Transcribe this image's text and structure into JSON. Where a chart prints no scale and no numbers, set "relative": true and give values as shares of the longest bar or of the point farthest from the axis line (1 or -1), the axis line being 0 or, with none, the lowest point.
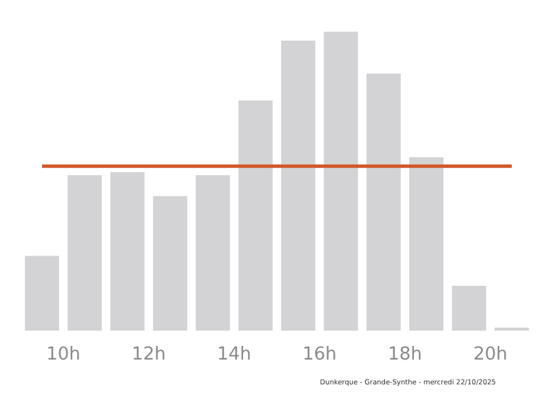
{
  "chart_data": {
    "type": "bar",
    "relative": true,
    "x": [
      9.5,
      10.5,
      11.5,
      12.5,
      13.5,
      14.5,
      15.5,
      16.5,
      17.5,
      18.5,
      19.5,
      20.5
    ],
    "values": [
      0.25,
      0.52,
      0.53,
      0.45,
      0.52,
      0.77,
      0.97,
      1,
      0.86,
      0.58,
      0.15,
      0.01
    ],
    "color": "#d3d3d5",
    "xlim": [
      9,
      21
    ],
    "xticks": [
      {
        "value": 10,
        "label": "10h"
      },
      {
        "value": 12,
        "label": "12h"
      },
      {
        "value": 14,
        "label": "14h"
      },
      {
        "value": 16,
        "label": "16h"
      },
      {
        "value": 18,
        "label": "18h"
      },
      {
        "value": 20,
        "label": "20h"
      }
    ],
    "ref_lines": [
      {
        "axis": "y",
        "value": 0.55,
        "color": "#d2582a"
      }
    ],
    "annotations": [
      "Dunkerque - Grande-Synthe - mercredi 22/10/2025"
    ],
    "grid": false
  }
}
